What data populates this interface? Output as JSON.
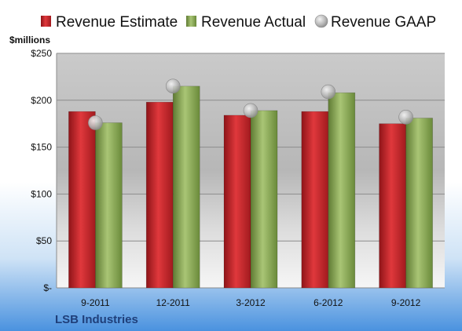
{
  "chart_data": {
    "type": "bar",
    "title": "",
    "units_label": "$millions",
    "company": "LSB Industries",
    "categories": [
      "9-2011",
      "12-2011",
      "3-2012",
      "6-2012",
      "9-2012"
    ],
    "series": [
      {
        "name": "Revenue Estimate",
        "kind": "bar",
        "color": "#c9282d",
        "values": [
          188,
          198,
          184,
          188,
          175
        ]
      },
      {
        "name": "Revenue Actual",
        "kind": "bar",
        "color": "#8bab55",
        "values": [
          176,
          215,
          189,
          208,
          181
        ]
      },
      {
        "name": "Revenue GAAP",
        "kind": "marker",
        "color": "#b8b8b8",
        "values": [
          176,
          215,
          189,
          209,
          182
        ]
      }
    ],
    "ylim": [
      0,
      250
    ],
    "yticks": [
      0,
      50,
      100,
      150,
      200,
      250
    ],
    "ytick_labels": [
      "$-",
      "$50",
      "$100",
      "$150",
      "$200",
      "$250"
    ],
    "grid": true,
    "legend_position": "top"
  }
}
